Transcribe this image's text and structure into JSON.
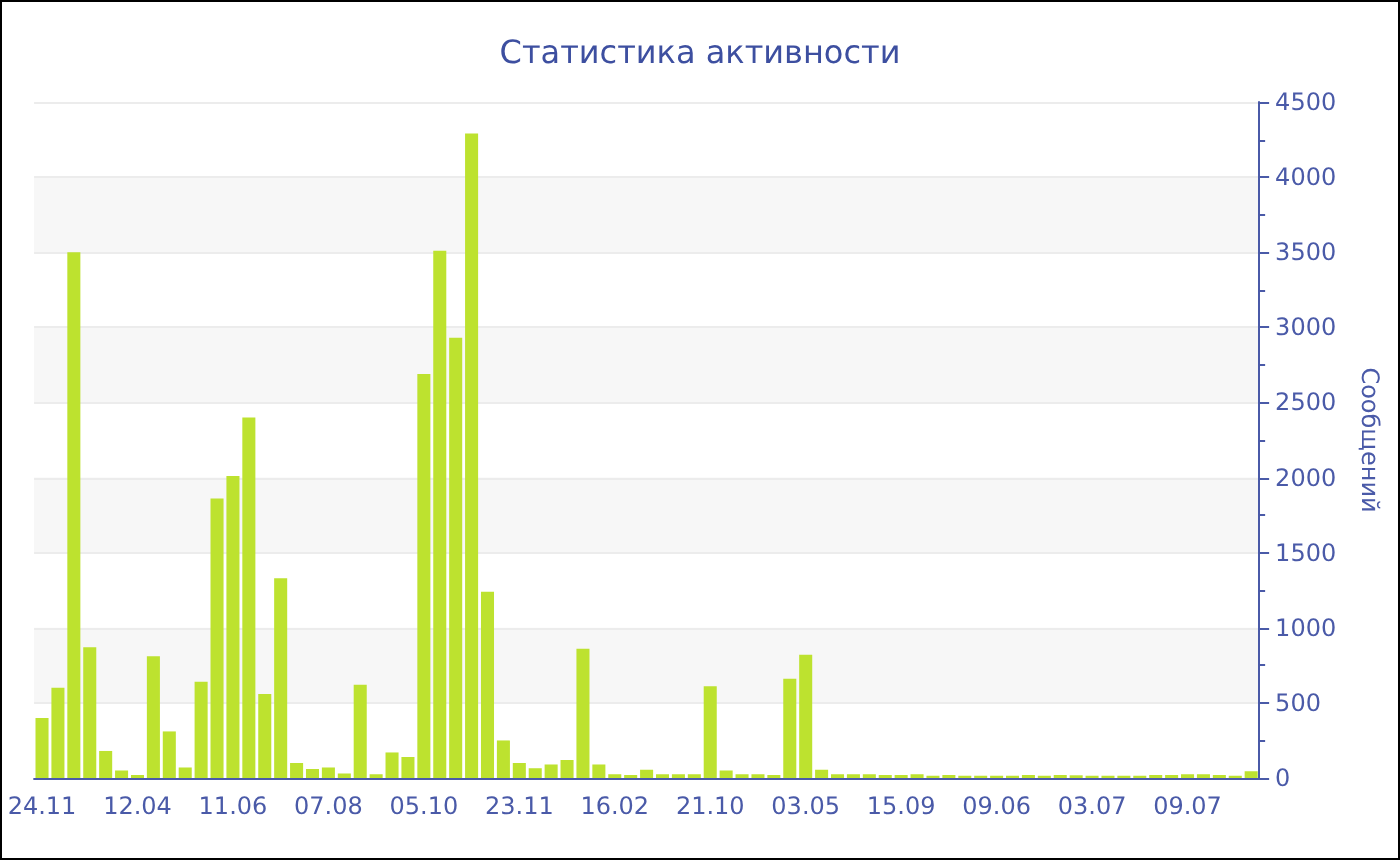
{
  "chart_data": {
    "type": "bar",
    "title": "Статистика активности",
    "ylabel": "Сообщений",
    "categories": [
      "24.11",
      null,
      null,
      null,
      null,
      null,
      "12.04",
      null,
      null,
      null,
      null,
      null,
      "11.06",
      null,
      null,
      null,
      null,
      null,
      "07.08",
      null,
      null,
      null,
      null,
      null,
      "05.10",
      null,
      null,
      null,
      null,
      null,
      "23.11",
      null,
      null,
      null,
      null,
      null,
      "16.02",
      null,
      null,
      null,
      null,
      null,
      "21.10",
      null,
      null,
      null,
      null,
      null,
      "03.05",
      null,
      null,
      null,
      null,
      null,
      "15.09",
      null,
      null,
      null,
      null,
      null,
      "09.06",
      null,
      null,
      null,
      null,
      null,
      "03.07",
      null,
      null,
      null,
      null,
      null,
      "09.07",
      null,
      null,
      null,
      null
    ],
    "values": [
      400,
      600,
      3500,
      870,
      180,
      50,
      20,
      810,
      310,
      70,
      640,
      1860,
      2010,
      2400,
      560,
      1330,
      100,
      60,
      70,
      30,
      620,
      25,
      170,
      140,
      2690,
      3510,
      2930,
      4290,
      1240,
      250,
      100,
      65,
      90,
      120,
      860,
      90,
      25,
      20,
      55,
      25,
      25,
      25,
      610,
      50,
      25,
      25,
      20,
      660,
      820,
      55,
      25,
      25,
      25,
      20,
      20,
      25,
      15,
      20,
      15,
      15,
      15,
      15,
      20,
      15,
      20,
      18,
      15,
      15,
      15,
      15,
      20,
      20,
      25,
      25,
      20,
      15,
      45
    ],
    "color": "#bde22f",
    "ylim": [
      0,
      4500
    ],
    "yticks": [
      0,
      500,
      1000,
      1500,
      2000,
      2500,
      3000,
      3500,
      4000,
      4500
    ],
    "grid": "y"
  }
}
